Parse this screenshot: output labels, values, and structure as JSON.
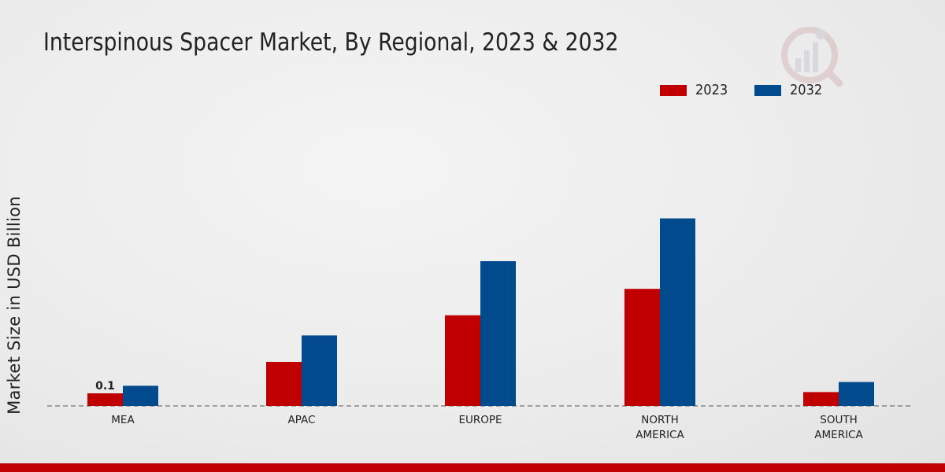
{
  "chart_data": {
    "type": "bar",
    "title": "Interspinous Spacer Market, By Regional, 2023 & 2032",
    "ylabel": "Market Size in USD Billion",
    "xlabel": "",
    "categories": [
      "MEA",
      "APAC",
      "EUROPE",
      "NORTH\nAMERICA",
      "SOUTH\nAMERICA"
    ],
    "series": [
      {
        "name": "2023",
        "color": "#c00000",
        "values": [
          0.1,
          0.35,
          0.72,
          0.93,
          0.11
        ]
      },
      {
        "name": "2032",
        "color": "#004a8d",
        "values": [
          0.16,
          0.56,
          1.15,
          1.49,
          0.19
        ]
      }
    ],
    "data_labels": [
      {
        "series": 0,
        "category": 0,
        "text": "0.1"
      }
    ],
    "ylim": [
      0,
      2.0
    ],
    "grid": false,
    "legend_position": "top-right"
  }
}
